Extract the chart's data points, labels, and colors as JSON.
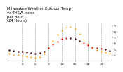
{
  "title": "Milwaukee Weather Outdoor Temp\nvs THSW Index\nper Hour\n(24 Hours)",
  "hours": [
    0,
    1,
    2,
    3,
    4,
    5,
    6,
    7,
    8,
    9,
    10,
    11,
    12,
    13,
    14,
    15,
    16,
    17,
    18,
    19,
    20,
    21,
    22,
    23
  ],
  "temp_F": [
    48,
    47,
    46,
    45,
    44,
    43,
    42,
    43,
    46,
    52,
    58,
    63,
    67,
    68,
    69,
    67,
    64,
    60,
    56,
    53,
    51,
    50,
    49,
    47
  ],
  "thsw": [
    42,
    40,
    39,
    38,
    37,
    36,
    35,
    36,
    42,
    52,
    64,
    74,
    82,
    86,
    88,
    84,
    76,
    66,
    58,
    52,
    48,
    46,
    44,
    42
  ],
  "black_dots_x": [
    0,
    1,
    2,
    3,
    4,
    5,
    6,
    7,
    8,
    14,
    15,
    16,
    22,
    23
  ],
  "black_dots_temp": [
    48,
    47,
    46,
    45,
    44,
    43,
    42,
    43,
    46,
    69,
    67,
    64,
    49,
    47
  ],
  "temp_color": "#dd0000",
  "thsw_color": "#ff9900",
  "black_color": "#222222",
  "bg_color": "#ffffff",
  "grid_color": "#999999",
  "ylim": [
    30,
    95
  ],
  "ytick_vals": [
    40,
    50,
    60,
    70,
    80,
    90
  ],
  "ytick_labels": [
    "4.",
    "5.",
    "6.",
    "7.",
    "8.",
    "9."
  ],
  "vgrid_positions": [
    3,
    6,
    9,
    12,
    15,
    18,
    21
  ],
  "xtick_positions": [
    3,
    6,
    9,
    12,
    15,
    18,
    21
  ],
  "xtick_labels": [
    "3",
    "6",
    "9",
    "12",
    "15",
    "18",
    "21"
  ],
  "marker_size": 1.5,
  "title_fontsize": 3.8,
  "tick_fontsize": 3.2
}
